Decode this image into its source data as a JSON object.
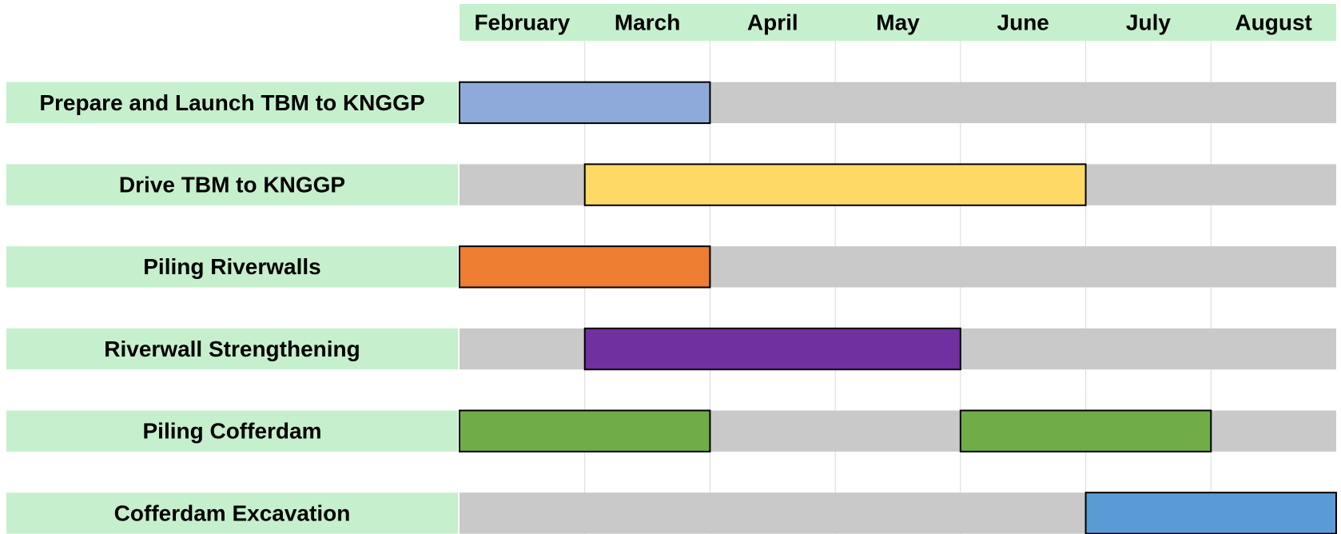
{
  "chart_data": {
    "type": "gantt",
    "categories": [
      "February",
      "March",
      "April",
      "May",
      "June",
      "July",
      "August"
    ],
    "tasks": [
      {
        "name": "Prepare and Launch TBM to KNGGP",
        "color": "#8eaadb",
        "bars": [
          {
            "start": "February",
            "end": "March"
          }
        ]
      },
      {
        "name": "Drive TBM to KNGGP",
        "color": "#ffd966",
        "bars": [
          {
            "start": "March",
            "end": "June"
          }
        ]
      },
      {
        "name": "Piling Riverwalls",
        "color": "#ed7d31",
        "bars": [
          {
            "start": "February",
            "end": "March"
          }
        ]
      },
      {
        "name": "Riverwall Strengthening",
        "color": "#7030a0",
        "bars": [
          {
            "start": "March",
            "end": "May"
          }
        ]
      },
      {
        "name": "Piling Cofferdam",
        "color": "#70ad47",
        "bars": [
          {
            "start": "February",
            "end": "March"
          },
          {
            "start": "June",
            "end": "July"
          }
        ]
      },
      {
        "name": "Cofferdam Excavation",
        "color": "#5b9bd5",
        "bars": [
          {
            "start": "July",
            "end": "August"
          }
        ]
      }
    ],
    "header_color": "#c6efce",
    "track_color": "#c9c9c9",
    "grid": true
  }
}
